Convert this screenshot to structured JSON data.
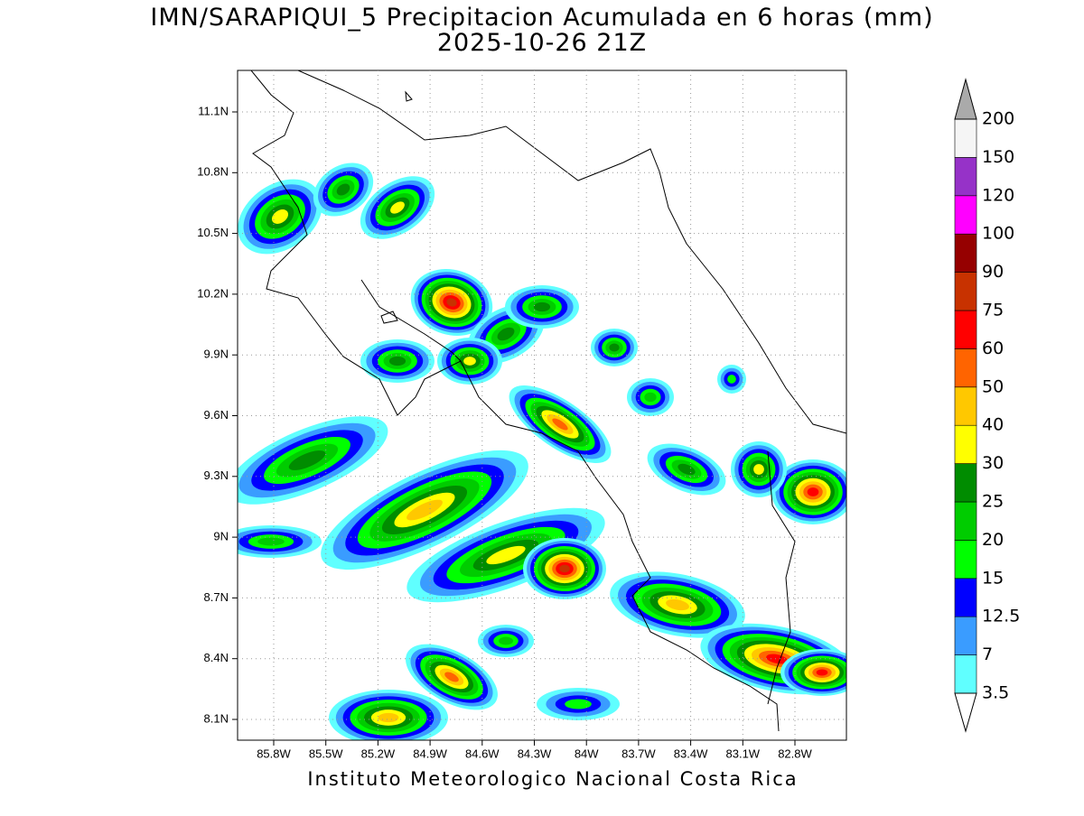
{
  "header": {
    "title": "IMN/SARAPIQUI_5 Precipitacion Acumulada en 6 horas (mm)",
    "subtitle": "2025-10-26 21Z"
  },
  "map": {
    "lat_labels": [
      "11.1N",
      "10.8N",
      "10.5N",
      "10.2N",
      "9.9N",
      "9.6N",
      "9.3N",
      "9N",
      "8.7N",
      "8.4N",
      "8.1N"
    ],
    "lon_labels": [
      "85.8W",
      "85.5W",
      "85.2W",
      "84.9W",
      "84.6W",
      "84.3W",
      "84W",
      "83.7W",
      "83.4W",
      "83.1W",
      "82.8W"
    ]
  },
  "legend": {
    "levels": [
      "3.5",
      "7",
      "12.5",
      "15",
      "20",
      "25",
      "30",
      "40",
      "50",
      "60",
      "75",
      "90",
      "100",
      "120",
      "150",
      "200"
    ],
    "colors": [
      "#60ffff",
      "#3a9cff",
      "#0000ff",
      "#00ff00",
      "#00cc00",
      "#008c00",
      "#ffff00",
      "#ffc800",
      "#ff6400",
      "#ff0000",
      "#c83200",
      "#960000",
      "#ff00ff",
      "#9632c8",
      "#f5f5f5"
    ],
    "over_color": "#aaaaaa",
    "under_color": "#ffffff"
  },
  "footer": {
    "text": "Instituto Meteorologico Nacional Costa Rica"
  }
}
